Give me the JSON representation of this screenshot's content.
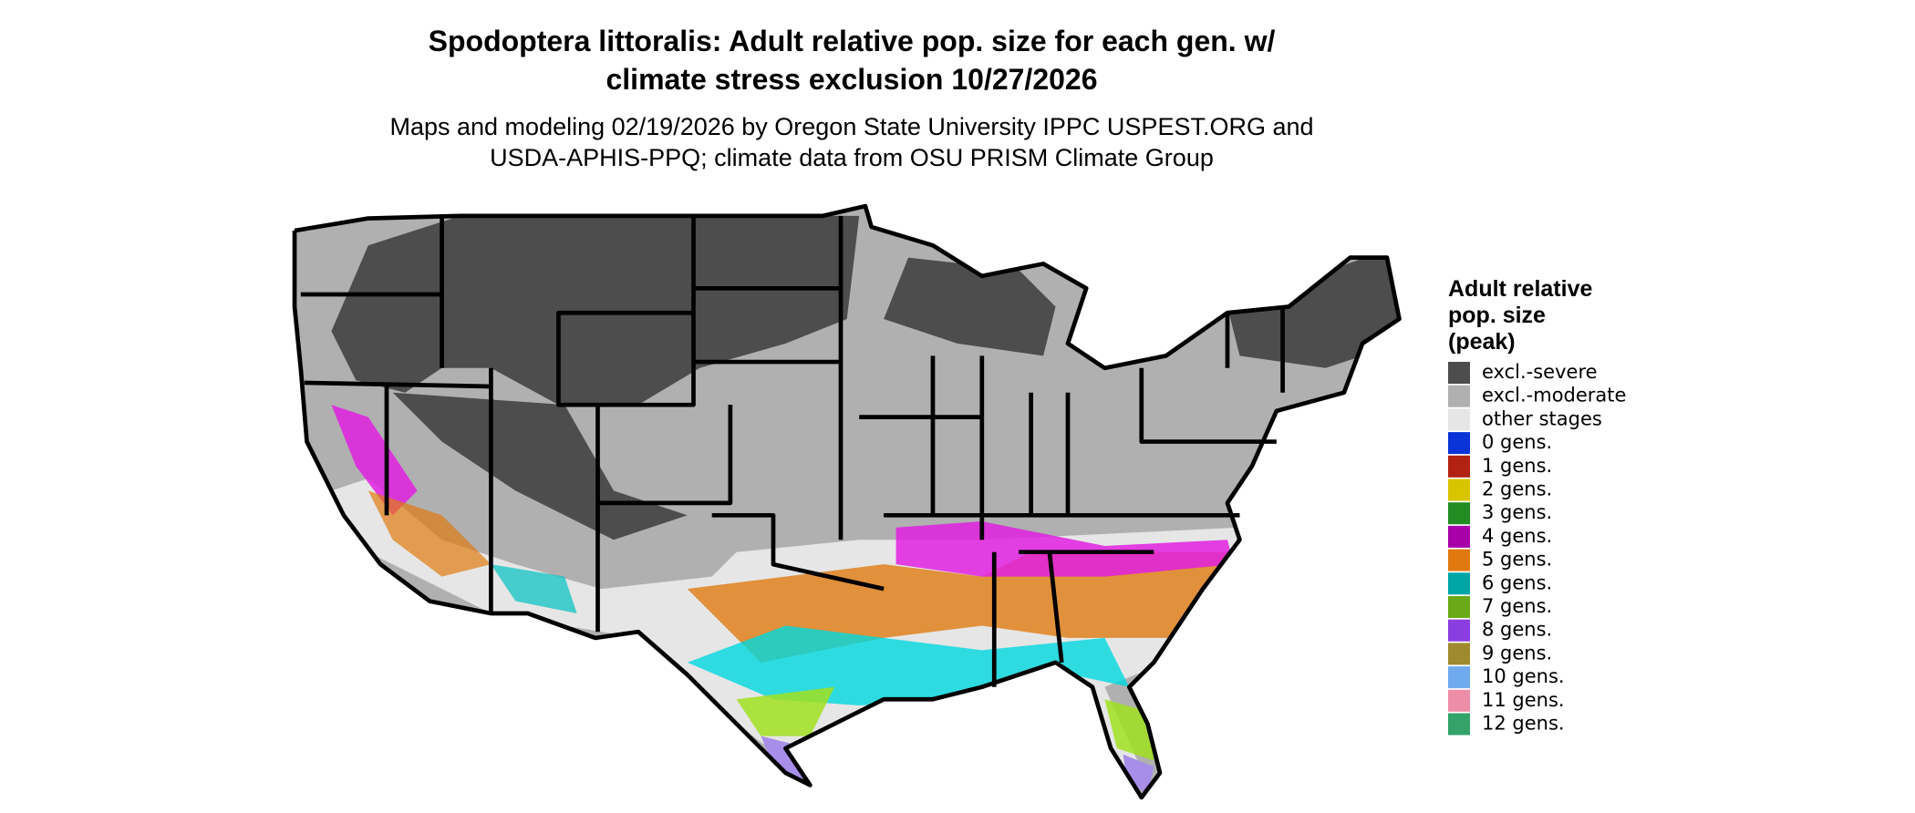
{
  "title_lines": [
    "Spodoptera littoralis: Adult relative pop. size for each gen. w/",
    "climate stress exclusion 10/27/2026"
  ],
  "subtitle_lines": [
    "Maps and modeling 02/19/2026 by Oregon State University IPPC USPEST.ORG and",
    "USDA-APHIS-PPQ; climate data from OSU PRISM Climate Group"
  ],
  "legend": {
    "title_lines": [
      "Adult relative",
      "pop. size",
      "(peak)"
    ],
    "items": [
      {
        "label": "excl.-severe",
        "color": "#4d4d4d"
      },
      {
        "label": "excl.-moderate",
        "color": "#b0b0b0"
      },
      {
        "label": "other stages",
        "color": "#e6e6e6"
      },
      {
        "label": "0 gens.",
        "color": "#0a34d8"
      },
      {
        "label": "1 gens.",
        "color": "#b22212"
      },
      {
        "label": "2 gens.",
        "color": "#d9c400"
      },
      {
        "label": "3 gens.",
        "color": "#228b22"
      },
      {
        "label": "4 gens.",
        "color": "#a800a8"
      },
      {
        "label": "5 gens.",
        "color": "#e07a10"
      },
      {
        "label": "6 gens.",
        "color": "#00a6a6"
      },
      {
        "label": "7 gens.",
        "color": "#6aaa18"
      },
      {
        "label": "8 gens.",
        "color": "#8a3de0"
      },
      {
        "label": "9 gens.",
        "color": "#a08a30"
      },
      {
        "label": "10 gens.",
        "color": "#70aaee"
      },
      {
        "label": "11 gens.",
        "color": "#ee8ea6"
      },
      {
        "label": "12 gens.",
        "color": "#33a36a"
      }
    ]
  }
}
